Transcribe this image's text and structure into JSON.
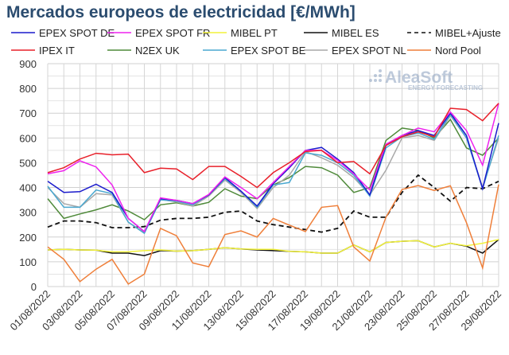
{
  "chart_data": {
    "type": "line",
    "title": "Mercados europeos de electricidad [€/MWh]",
    "xlabel": "",
    "ylabel": "",
    "ylim": [
      0,
      900
    ],
    "yticks": [
      0,
      100,
      200,
      300,
      400,
      500,
      600,
      700,
      800,
      900
    ],
    "grid": true,
    "legend_position": "top",
    "x": [
      "01/08/2022",
      "02/08/2022",
      "03/08/2022",
      "04/08/2022",
      "05/08/2022",
      "06/08/2022",
      "07/08/2022",
      "08/08/2022",
      "09/08/2022",
      "10/08/2022",
      "11/08/2022",
      "12/08/2022",
      "13/08/2022",
      "14/08/2022",
      "15/08/2022",
      "16/08/2022",
      "17/08/2022",
      "18/08/2022",
      "19/08/2022",
      "20/08/2022",
      "21/08/2022",
      "22/08/2022",
      "23/08/2022",
      "24/08/2022",
      "25/08/2022",
      "26/08/2022",
      "27/08/2022",
      "28/08/2022",
      "29/08/2022"
    ],
    "xtick_labels": [
      "01/08/2022",
      "03/08/2022",
      "05/08/2022",
      "07/08/2022",
      "09/08/2022",
      "11/08/2022",
      "13/08/2022",
      "15/08/2022",
      "17/08/2022",
      "19/08/2022",
      "21/08/2022",
      "23/08/2022",
      "25/08/2022",
      "27/08/2022",
      "29/08/2022"
    ],
    "series": [
      {
        "name": "EPEX SPOT DE",
        "color": "#1a1acc",
        "dash": false,
        "values": [
          425,
          380,
          383,
          413,
          380,
          275,
          222,
          355,
          348,
          335,
          370,
          440,
          385,
          325,
          415,
          480,
          550,
          562,
          515,
          460,
          370,
          570,
          610,
          630,
          610,
          700,
          610,
          395,
          660
        ]
      },
      {
        "name": "EPEX SPOT FR",
        "color": "#ee22ee",
        "dash": false,
        "values": [
          455,
          468,
          508,
          483,
          410,
          275,
          222,
          358,
          348,
          335,
          372,
          443,
          400,
          355,
          420,
          485,
          550,
          550,
          510,
          455,
          390,
          575,
          610,
          640,
          625,
          705,
          630,
          490,
          740
        ]
      },
      {
        "name": "MIBEL PT",
        "color": "#f2f23a",
        "dash": false,
        "values": [
          148,
          150,
          148,
          147,
          140,
          140,
          145,
          148,
          143,
          145,
          150,
          157,
          152,
          150,
          150,
          142,
          140,
          135,
          135,
          168,
          140,
          178,
          183,
          185,
          160,
          175,
          165,
          175,
          190
        ]
      },
      {
        "name": "MIBEL ES",
        "color": "#111111",
        "dash": false,
        "values": [
          148,
          150,
          148,
          147,
          135,
          135,
          125,
          145,
          143,
          145,
          150,
          157,
          152,
          148,
          145,
          142,
          140,
          135,
          135,
          168,
          140,
          178,
          183,
          185,
          160,
          175,
          163,
          135,
          190
        ]
      },
      {
        "name": "MIBEL+Ajuste",
        "color": "#111111",
        "dash": true,
        "values": [
          240,
          265,
          265,
          258,
          238,
          238,
          242,
          268,
          275,
          275,
          280,
          300,
          305,
          265,
          250,
          240,
          230,
          220,
          235,
          305,
          280,
          280,
          380,
          450,
          400,
          345,
          400,
          395,
          425
        ]
      },
      {
        "name": "IPEX IT",
        "color": "#e8202a",
        "dash": false,
        "values": [
          460,
          480,
          515,
          538,
          532,
          535,
          460,
          478,
          475,
          432,
          485,
          485,
          445,
          400,
          460,
          500,
          545,
          550,
          500,
          505,
          455,
          570,
          605,
          625,
          605,
          720,
          715,
          670,
          740
        ]
      },
      {
        "name": "N2EX UK",
        "color": "#4f8a3a",
        "dash": false,
        "values": [
          355,
          275,
          293,
          310,
          330,
          305,
          270,
          330,
          338,
          325,
          340,
          395,
          365,
          355,
          410,
          440,
          485,
          480,
          450,
          380,
          400,
          590,
          640,
          630,
          600,
          675,
          560,
          530,
          600
        ]
      },
      {
        "name": "EPEX SPOT BE",
        "color": "#4aa8d0",
        "dash": false,
        "values": [
          405,
          320,
          320,
          390,
          375,
          260,
          215,
          350,
          345,
          330,
          370,
          435,
          385,
          320,
          410,
          420,
          540,
          530,
          500,
          450,
          365,
          560,
          605,
          620,
          595,
          695,
          600,
          395,
          610
        ]
      },
      {
        "name": "EPEX SPOT NL",
        "color": "#a8a8a8",
        "dash": false,
        "values": [
          400,
          335,
          320,
          375,
          370,
          260,
          218,
          352,
          342,
          325,
          365,
          430,
          380,
          315,
          400,
          450,
          545,
          520,
          490,
          440,
          370,
          470,
          600,
          610,
          590,
          690,
          600,
          400,
          600
        ]
      },
      {
        "name": "Nord Pool",
        "color": "#ef7f3a",
        "dash": false,
        "values": [
          160,
          110,
          20,
          70,
          110,
          10,
          50,
          235,
          205,
          95,
          80,
          210,
          225,
          200,
          275,
          248,
          222,
          320,
          327,
          160,
          103,
          280,
          392,
          408,
          388,
          407,
          258,
          75,
          412
        ]
      }
    ]
  },
  "watermark": {
    "brand": "AleaSoft",
    "tagline": "ENERGY FORECASTING"
  }
}
